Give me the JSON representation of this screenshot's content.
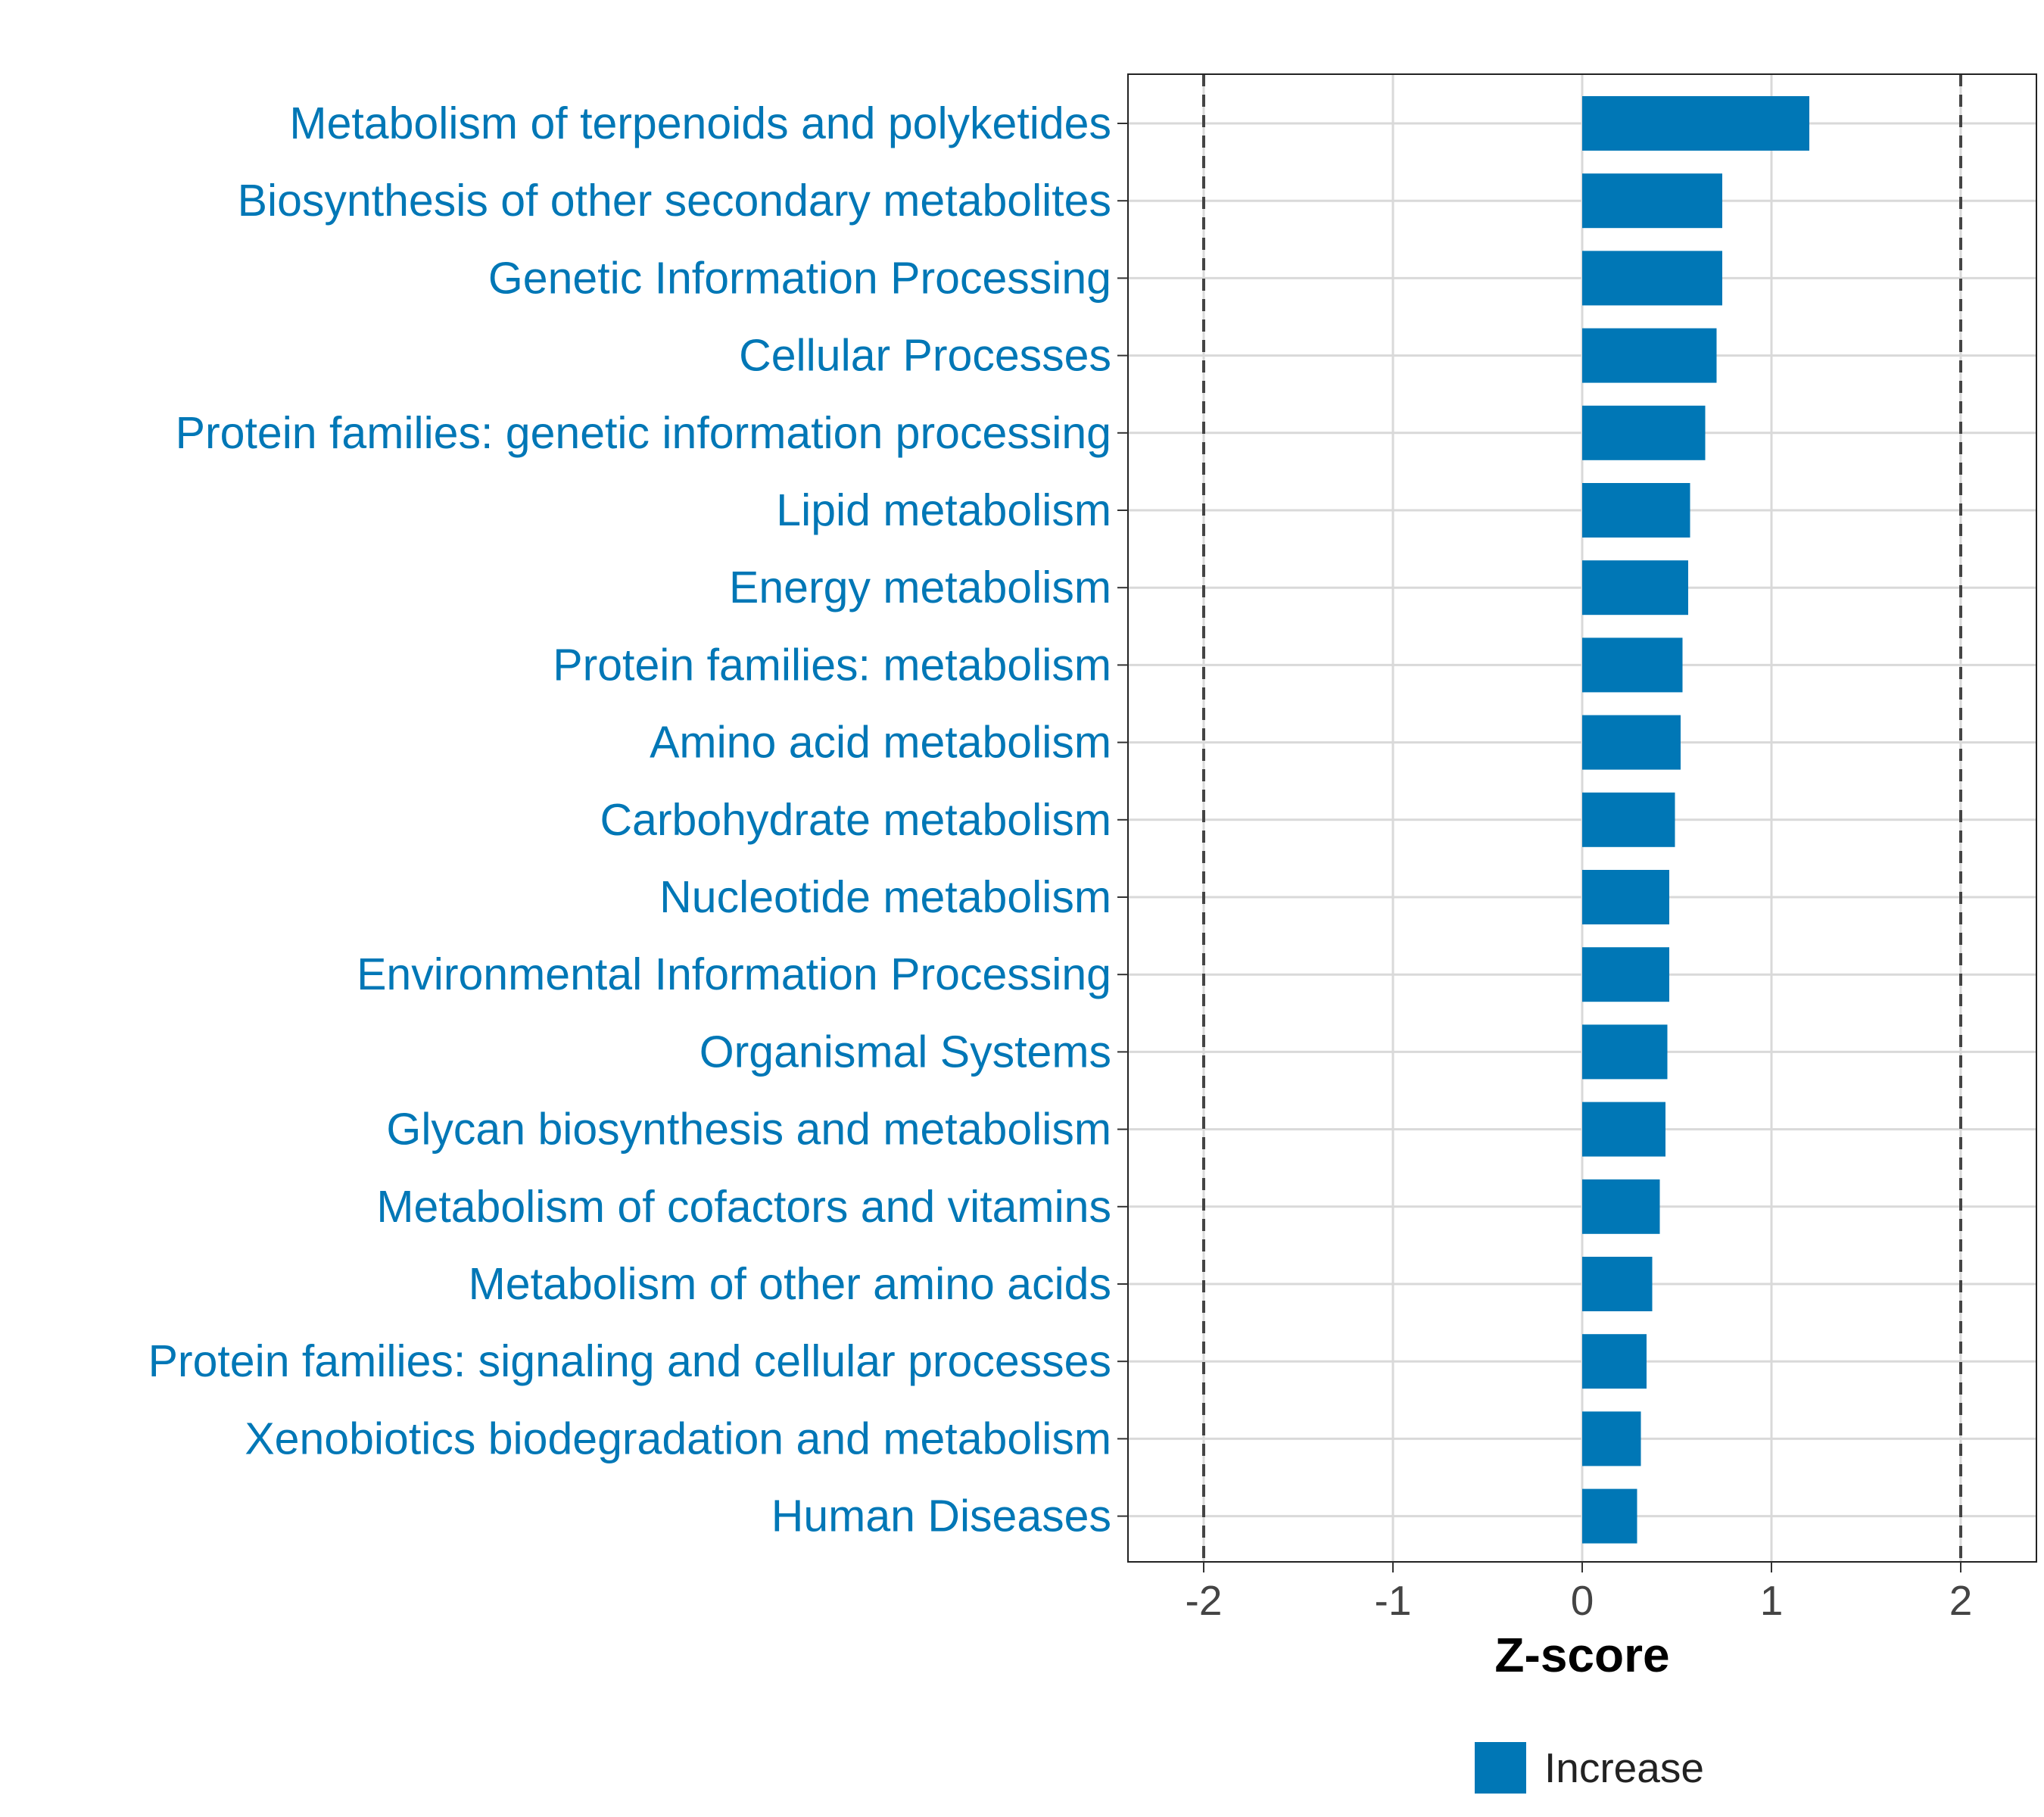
{
  "chart_data": {
    "type": "bar",
    "orientation": "horizontal",
    "categories": [
      "Metabolism of terpenoids and polyketides",
      "Biosynthesis of other secondary metabolites",
      "Genetic Information Processing",
      "Cellular Processes",
      "Protein families: genetic information processing",
      "Lipid metabolism",
      "Energy metabolism",
      "Protein families: metabolism",
      "Amino acid metabolism",
      "Carbohydrate metabolism",
      "Nucleotide metabolism",
      "Environmental Information Processing",
      "Organismal Systems",
      "Glycan biosynthesis and metabolism",
      "Metabolism of cofactors and vitamins",
      "Metabolism of other amino acids",
      "Protein families: signaling and cellular processes",
      "Xenobiotics biodegradation and metabolism",
      "Human Diseases"
    ],
    "values": [
      1.2,
      0.74,
      0.74,
      0.71,
      0.65,
      0.57,
      0.56,
      0.53,
      0.52,
      0.49,
      0.46,
      0.46,
      0.45,
      0.44,
      0.41,
      0.37,
      0.34,
      0.31,
      0.29
    ],
    "xlabel": "Z-score",
    "ylabel": "",
    "xlim": [
      -2.4,
      2.4
    ],
    "x_ticks": [
      "-2",
      "-1",
      "0",
      "1",
      "2"
    ],
    "x_tick_values": [
      -2,
      -1,
      0,
      1,
      2
    ],
    "reference_lines": [
      -2,
      2
    ],
    "grid": true,
    "legend": {
      "position": "bottom",
      "entries": [
        {
          "label": "Increase",
          "color": "#0077B6"
        }
      ]
    },
    "bar_color": "#0077B6"
  }
}
